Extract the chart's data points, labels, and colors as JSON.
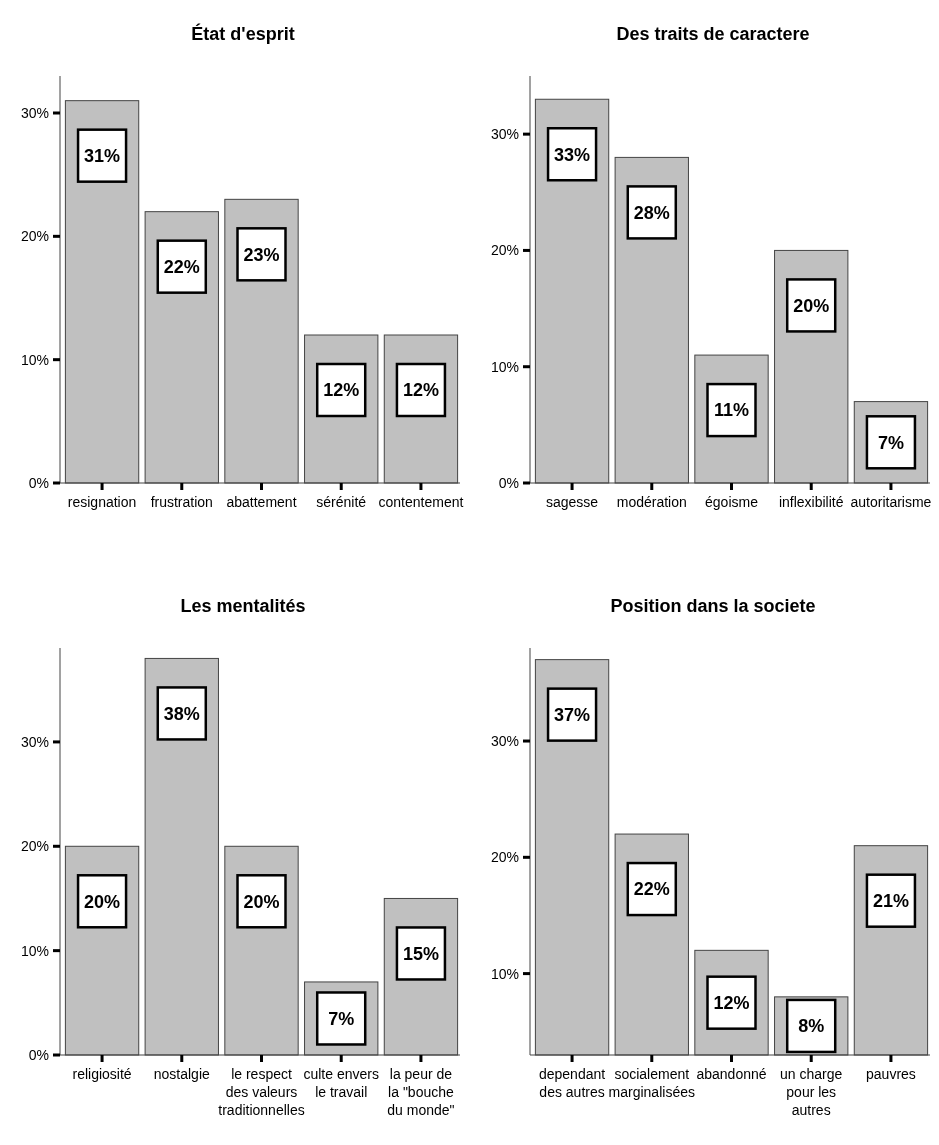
{
  "chart_data": [
    {
      "type": "bar",
      "title": "État d'esprit",
      "categories": [
        "resignation",
        "frustration",
        "abattement",
        "sérénité",
        "contentement"
      ],
      "values": [
        31,
        22,
        23,
        12,
        12
      ],
      "value_labels": [
        "31%",
        "22%",
        "23%",
        "12%",
        "12%"
      ],
      "color": "#c0c0c0",
      "ylim": [
        0,
        33
      ],
      "yticks": [
        {
          "value": 0,
          "label": "0%"
        },
        {
          "value": 10,
          "label": "10%"
        },
        {
          "value": 20,
          "label": "20%"
        },
        {
          "value": 30,
          "label": "30%"
        }
      ]
    },
    {
      "type": "bar",
      "title": "Des traits de caractere",
      "categories": [
        "sagesse",
        "modération",
        "égoisme",
        "inflexibilité",
        "autoritarisme"
      ],
      "values": [
        33,
        28,
        11,
        20,
        7
      ],
      "value_labels": [
        "33%",
        "28%",
        "11%",
        "20%",
        "7%"
      ],
      "color": "#c0c0c0",
      "ylim": [
        0,
        35
      ],
      "yticks": [
        {
          "value": 0,
          "label": "0%"
        },
        {
          "value": 10,
          "label": "10%"
        },
        {
          "value": 20,
          "label": "20%"
        },
        {
          "value": 30,
          "label": "30%"
        }
      ]
    },
    {
      "type": "bar",
      "title": "Les mentalités",
      "categories": [
        "religiosité",
        "nostalgie",
        "le respect des valeurs traditionnelles",
        "culte envers le travail",
        "la peur de la \"bouche du monde\""
      ],
      "values": [
        20,
        38,
        20,
        7,
        15
      ],
      "value_labels": [
        "20%",
        "38%",
        "20%",
        "7%",
        "15%"
      ],
      "color": "#c0c0c0",
      "ylim": [
        0,
        39
      ],
      "yticks": [
        {
          "value": 0,
          "label": "0%"
        },
        {
          "value": 10,
          "label": "10%"
        },
        {
          "value": 20,
          "label": "20%"
        },
        {
          "value": 30,
          "label": "30%"
        }
      ]
    },
    {
      "type": "bar",
      "title": "Position dans la societe",
      "categories": [
        "dependant des autres",
        "socialement marginalisées",
        "abandonné",
        "un charge pour les autres",
        "pauvres"
      ],
      "values": [
        37,
        22,
        12,
        8,
        21
      ],
      "value_labels": [
        "37%",
        "22%",
        "12%",
        "8%",
        "21%"
      ],
      "color": "#c0c0c0",
      "ylim": [
        3,
        38
      ],
      "yticks": [
        {
          "value": 10,
          "label": "10%"
        },
        {
          "value": 20,
          "label": "20%"
        },
        {
          "value": 30,
          "label": "30%"
        }
      ]
    }
  ]
}
